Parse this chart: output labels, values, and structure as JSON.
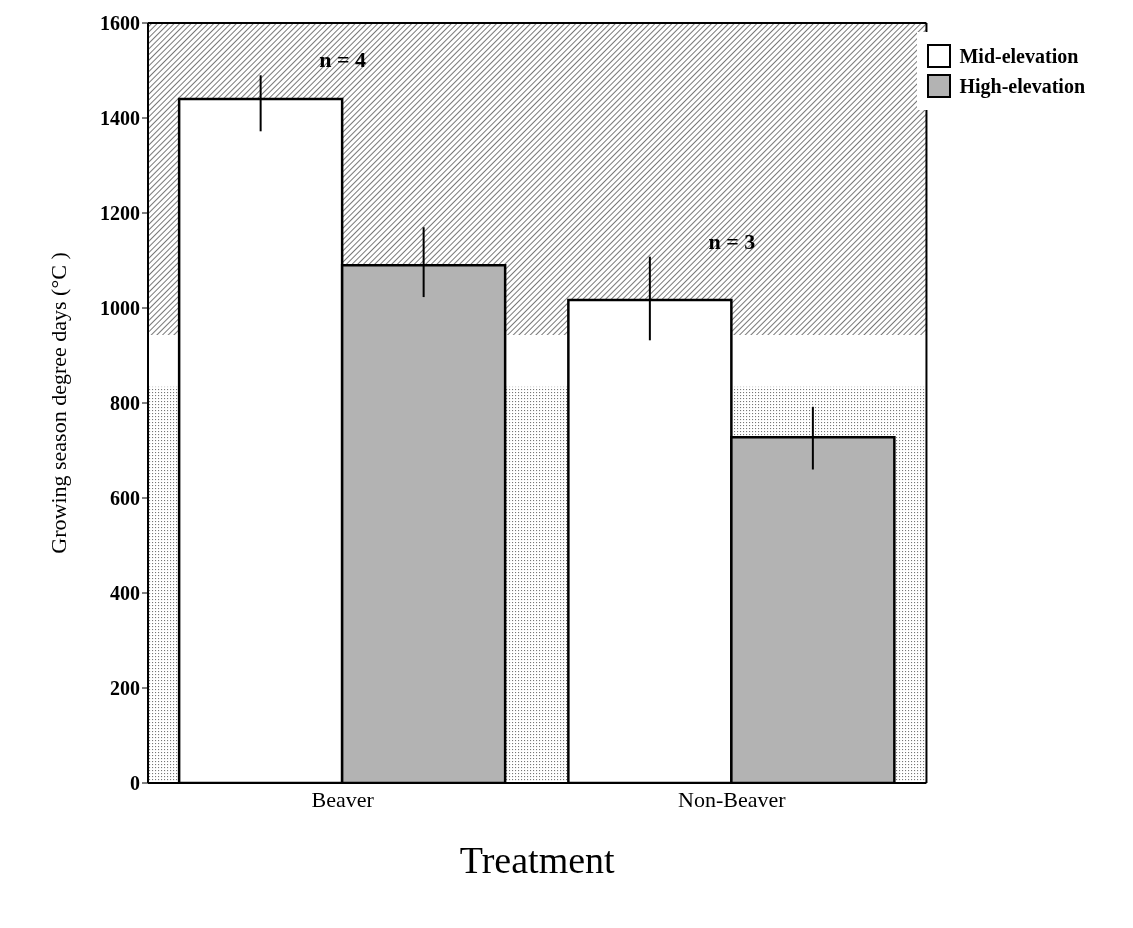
{
  "chart_data": {
    "type": "bar",
    "xlabel": "Treatment",
    "ylabel": "Growing season degree days (°C )",
    "categories": [
      "Beaver",
      "Non-Beaver"
    ],
    "series": [
      {
        "name": "Mid-elevation",
        "color": "#ffffff",
        "values": [
          1440,
          1017
        ],
        "errors": [
          [
            1372,
            1490
          ],
          [
            932,
            1108
          ]
        ]
      },
      {
        "name": "High-elevation",
        "color": "#b3b3b3",
        "values": [
          1090,
          728
        ],
        "errors": [
          [
            1023,
            1170
          ],
          [
            660,
            792
          ]
        ]
      }
    ],
    "ylim": [
      0,
      1600
    ],
    "yticks": [
      0,
      200,
      400,
      600,
      800,
      1000,
      1200,
      1400,
      1600
    ],
    "bands": [
      {
        "axis": "y",
        "from": 943,
        "to": 1600,
        "color": "#555555"
      },
      {
        "axis": "y",
        "from": 0,
        "to": 834,
        "color": "#777777"
      }
    ],
    "annotations": [
      "n = 4",
      "n = 3"
    ],
    "legend": "top right",
    "grid": false
  }
}
